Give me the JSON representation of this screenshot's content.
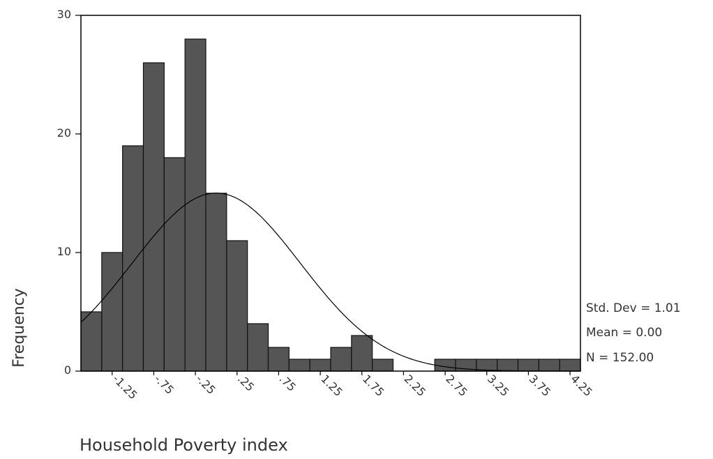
{
  "chart_data": {
    "type": "bar",
    "subtype": "histogram",
    "xlabel": "Household Poverty index",
    "ylabel": "Frequency",
    "ylim": [
      0,
      30
    ],
    "y_ticks": [
      "0",
      "10",
      "20",
      "30"
    ],
    "x_tick_labels": [
      "-1.25",
      "-.75",
      "-.25",
      ".25",
      ".75",
      "1.25",
      "1.75",
      "2.25",
      "2.75",
      "3.25",
      "3.75",
      "4.25"
    ],
    "bin_centers": [
      -1.5,
      -1.25,
      -1.0,
      -0.75,
      -0.5,
      -0.25,
      0.0,
      0.25,
      0.5,
      0.75,
      1.0,
      1.25,
      1.5,
      1.75,
      2.0,
      2.25,
      2.5,
      2.75,
      3.0,
      3.25,
      3.5,
      3.75,
      4.0,
      4.25
    ],
    "values": [
      5,
      10,
      19,
      26,
      18,
      28,
      15,
      11,
      4,
      2,
      1,
      1,
      2,
      3,
      1,
      0,
      0,
      1,
      1,
      1,
      1,
      1,
      1,
      1
    ],
    "bin_width": 0.25,
    "normal_curve": {
      "mean": 0.0,
      "std_dev": 1.01,
      "n": 152
    },
    "stats": {
      "std_dev": "Std. Dev = 1.01",
      "mean": "Mean = 0.00",
      "n": "N = 152.00"
    },
    "colors": {
      "bar_fill": "#555555",
      "bar_stroke": "#111111",
      "curve": "#000000",
      "frame": "#000000"
    },
    "grid": false
  }
}
